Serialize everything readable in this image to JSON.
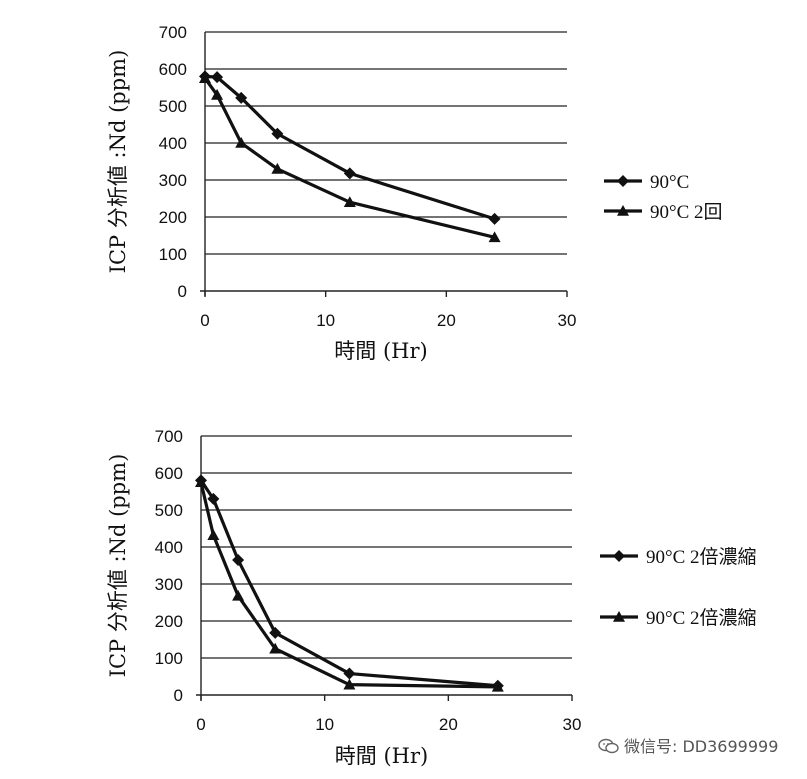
{
  "chart_data": [
    {
      "type": "line",
      "title": "",
      "xlabel": "時間 (Hr)",
      "ylabel": "ICP 分析値 :Nd (ppm)",
      "xlim": [
        0,
        30
      ],
      "ylim": [
        0,
        700
      ],
      "xticks": [
        0,
        10,
        20,
        30
      ],
      "yticks": [
        0,
        100,
        200,
        300,
        400,
        500,
        600,
        700
      ],
      "grid": "horizontal",
      "legend_position": "right",
      "series": [
        {
          "name": "90°C",
          "marker": "diamond",
          "x": [
            0,
            1,
            3,
            6,
            12,
            24
          ],
          "y": [
            580,
            578,
            522,
            425,
            318,
            195
          ]
        },
        {
          "name": "90°C 2回",
          "marker": "triangle",
          "x": [
            0,
            1,
            3,
            6,
            12,
            24
          ],
          "y": [
            575,
            530,
            400,
            330,
            240,
            145
          ]
        }
      ]
    },
    {
      "type": "line",
      "title": "",
      "xlabel": "時間 (Hr)",
      "ylabel": "ICP 分析値 :Nd (ppm)",
      "xlim": [
        0,
        30
      ],
      "ylim": [
        0,
        700
      ],
      "xticks": [
        0,
        10,
        20,
        30
      ],
      "yticks": [
        0,
        100,
        200,
        300,
        400,
        500,
        600,
        700
      ],
      "grid": "horizontal",
      "legend_position": "right",
      "series": [
        {
          "name": "90°C 2倍濃縮",
          "marker": "diamond",
          "x": [
            0,
            1,
            3,
            6,
            12,
            24
          ],
          "y": [
            580,
            530,
            365,
            168,
            58,
            25
          ]
        },
        {
          "name": "90°C 2倍濃縮",
          "marker": "triangle",
          "x": [
            0,
            1,
            3,
            6,
            12,
            24
          ],
          "y": [
            575,
            432,
            268,
            125,
            28,
            22
          ]
        }
      ]
    }
  ],
  "watermark": {
    "icon": "wechat-icon",
    "text": "微信号: DD3699999"
  }
}
